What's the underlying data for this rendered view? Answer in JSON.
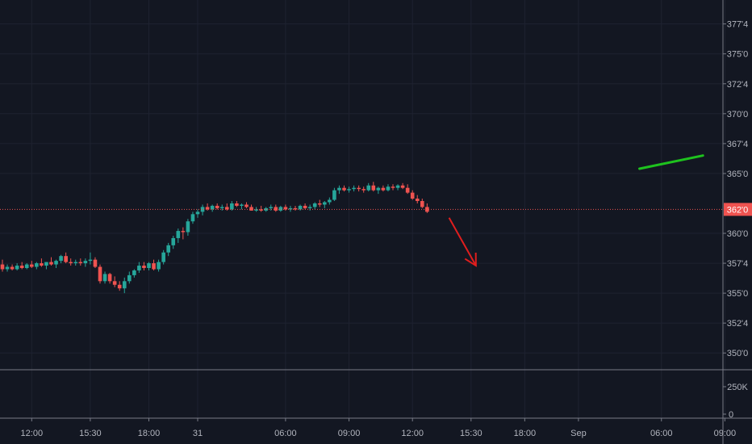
{
  "colors": {
    "background": "#131722",
    "grid": "#1e2230",
    "axis_line": "#787b86",
    "up": "#26a69a",
    "down": "#ef5350",
    "current_price": "#ef5350",
    "trend_up_line": "#1ec21e",
    "trend_down_arrow": "#e01e1e"
  },
  "chart_data": {
    "type": "candlestick",
    "price_axis": {
      "ticks": [
        "377'4",
        "375'0",
        "372'4",
        "370'0",
        "367'4",
        "365'0",
        "360'0",
        "357'4",
        "355'0",
        "352'4",
        "350'0"
      ],
      "tick_values": [
        377.5,
        375.0,
        372.5,
        370.0,
        367.5,
        365.0,
        360.0,
        357.5,
        355.0,
        352.5,
        350.0
      ],
      "range": [
        348.6,
        379.5
      ]
    },
    "current_price": {
      "label": "362'0",
      "value": 362.0
    },
    "volume_axis": {
      "ticks": [
        "250K",
        "0"
      ],
      "tick_values": [
        250000,
        0
      ]
    },
    "time_axis": {
      "labels": [
        "12:00",
        "15:30",
        "18:00",
        "31",
        "06:00",
        "09:00",
        "12:00",
        "15:30",
        "18:00",
        "Sep",
        "06:00",
        "09:00"
      ],
      "positions_bar_index": [
        6,
        18,
        30,
        40,
        58,
        71,
        84,
        96,
        107,
        118,
        135,
        148
      ]
    },
    "candles": [
      [
        357.4,
        357.8,
        356.8,
        357.0
      ],
      [
        357.0,
        357.4,
        356.8,
        357.2
      ],
      [
        357.2,
        357.4,
        356.9,
        357.0
      ],
      [
        357.0,
        357.5,
        356.9,
        357.3
      ],
      [
        357.3,
        357.6,
        357.0,
        357.1
      ],
      [
        357.1,
        357.5,
        357.0,
        357.4
      ],
      [
        357.4,
        357.7,
        357.1,
        357.2
      ],
      [
        357.2,
        357.6,
        357.0,
        357.5
      ],
      [
        357.5,
        357.9,
        357.2,
        357.3
      ],
      [
        357.3,
        357.6,
        357.0,
        357.6
      ],
      [
        357.6,
        358.0,
        357.3,
        357.4
      ],
      [
        357.4,
        357.8,
        357.1,
        357.7
      ],
      [
        357.7,
        358.2,
        357.5,
        358.1
      ],
      [
        358.1,
        358.4,
        357.5,
        357.6
      ],
      [
        357.6,
        357.9,
        357.3,
        357.5
      ],
      [
        357.5,
        357.8,
        357.3,
        357.6
      ],
      [
        357.6,
        357.9,
        357.3,
        357.5
      ],
      [
        357.5,
        357.9,
        357.2,
        357.7
      ],
      [
        357.7,
        358.4,
        357.4,
        357.8
      ],
      [
        357.8,
        358.0,
        357.1,
        357.2
      ],
      [
        357.2,
        357.4,
        355.8,
        356.0
      ],
      [
        356.0,
        356.8,
        355.8,
        356.6
      ],
      [
        356.6,
        356.7,
        355.8,
        356.0
      ],
      [
        356.0,
        356.4,
        355.5,
        355.7
      ],
      [
        355.7,
        356.0,
        355.2,
        355.4
      ],
      [
        355.4,
        356.3,
        355.0,
        356.0
      ],
      [
        356.0,
        356.8,
        355.8,
        356.5
      ],
      [
        356.5,
        357.0,
        356.3,
        356.9
      ],
      [
        356.9,
        357.6,
        356.7,
        357.3
      ],
      [
        357.3,
        357.6,
        356.9,
        357.1
      ],
      [
        357.1,
        357.6,
        356.9,
        357.5
      ],
      [
        357.5,
        357.8,
        356.9,
        357.0
      ],
      [
        357.0,
        357.8,
        356.8,
        357.6
      ],
      [
        357.6,
        358.6,
        357.4,
        358.4
      ],
      [
        358.4,
        359.2,
        358.1,
        359.0
      ],
      [
        359.0,
        359.8,
        358.7,
        359.6
      ],
      [
        359.6,
        360.4,
        359.2,
        360.2
      ],
      [
        360.2,
        360.5,
        359.5,
        360.1
      ],
      [
        360.1,
        361.2,
        359.8,
        361.0
      ],
      [
        361.0,
        361.8,
        360.8,
        361.6
      ],
      [
        361.6,
        362.0,
        361.3,
        361.8
      ],
      [
        361.8,
        362.4,
        361.5,
        362.2
      ],
      [
        362.2,
        362.5,
        361.9,
        362.0
      ],
      [
        362.0,
        362.4,
        361.8,
        362.3
      ],
      [
        362.3,
        362.5,
        362.0,
        362.1
      ],
      [
        362.1,
        362.4,
        361.9,
        362.2
      ],
      [
        362.2,
        362.5,
        361.9,
        362.0
      ],
      [
        362.0,
        362.7,
        361.9,
        362.5
      ],
      [
        362.5,
        362.7,
        362.2,
        362.3
      ],
      [
        362.3,
        362.5,
        362.0,
        362.4
      ],
      [
        362.4,
        362.6,
        362.1,
        362.2
      ],
      [
        362.2,
        362.4,
        361.9,
        361.9
      ],
      [
        361.9,
        362.2,
        361.8,
        362.0
      ],
      [
        362.0,
        362.3,
        361.8,
        361.9
      ],
      [
        361.9,
        362.2,
        361.8,
        362.1
      ],
      [
        362.1,
        362.4,
        361.9,
        362.2
      ],
      [
        362.2,
        362.4,
        361.8,
        361.9
      ],
      [
        361.9,
        362.3,
        361.8,
        362.2
      ],
      [
        362.2,
        362.4,
        361.9,
        362.0
      ],
      [
        362.0,
        362.3,
        361.8,
        362.1
      ],
      [
        362.1,
        362.3,
        361.9,
        362.0
      ],
      [
        362.0,
        362.4,
        361.9,
        362.3
      ],
      [
        362.3,
        362.5,
        362.0,
        362.1
      ],
      [
        362.1,
        362.4,
        361.9,
        362.2
      ],
      [
        362.2,
        362.6,
        362.0,
        362.5
      ],
      [
        362.5,
        362.8,
        362.2,
        362.4
      ],
      [
        362.4,
        362.7,
        362.1,
        362.6
      ],
      [
        362.6,
        363.0,
        362.4,
        362.8
      ],
      [
        362.8,
        363.8,
        362.7,
        363.6
      ],
      [
        363.6,
        364.0,
        363.3,
        363.8
      ],
      [
        363.8,
        364.0,
        363.5,
        363.6
      ],
      [
        363.6,
        363.9,
        363.4,
        363.7
      ],
      [
        363.7,
        364.0,
        363.5,
        363.8
      ],
      [
        363.8,
        364.0,
        363.5,
        363.7
      ],
      [
        363.7,
        363.9,
        363.4,
        363.6
      ],
      [
        363.6,
        364.2,
        363.5,
        364.0
      ],
      [
        364.0,
        364.3,
        363.5,
        363.6
      ],
      [
        363.6,
        363.9,
        363.3,
        363.8
      ],
      [
        363.8,
        364.0,
        363.5,
        363.6
      ],
      [
        363.6,
        364.1,
        363.5,
        363.9
      ],
      [
        363.9,
        364.1,
        363.6,
        363.8
      ],
      [
        363.8,
        364.1,
        363.6,
        364.0
      ],
      [
        364.0,
        364.2,
        363.7,
        363.8
      ],
      [
        363.8,
        364.1,
        363.3,
        363.4
      ],
      [
        363.4,
        363.6,
        362.8,
        362.9
      ],
      [
        362.9,
        363.2,
        362.5,
        362.7
      ],
      [
        362.7,
        362.9,
        362.1,
        362.2
      ],
      [
        362.2,
        362.5,
        361.7,
        361.8
      ]
    ],
    "grid": true,
    "annotations": [
      {
        "type": "trend-line",
        "color": "#1ec21e",
        "start": {
          "bar": 130.5,
          "price": 365.4
        },
        "end": {
          "bar": 143.5,
          "price": 366.5
        }
      },
      {
        "type": "arrow",
        "color": "#e01e1e",
        "start": {
          "bar": 91.5,
          "price": 361.3
        },
        "end": {
          "bar": 97.0,
          "price": 357.3
        }
      }
    ]
  }
}
